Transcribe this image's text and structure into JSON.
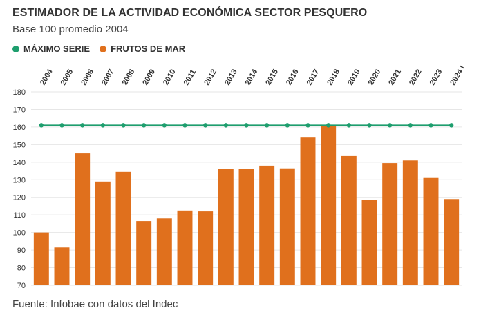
{
  "header": {
    "title": "ESTIMADOR DE LA ACTIVIDAD ECONÓMICA SECTOR PESQUERO",
    "subtitle": "Base 100 promedio 2004"
  },
  "legend": {
    "items": [
      {
        "label": "MÁXIMO SERIE",
        "color": "#1e9e6e"
      },
      {
        "label": "FRUTOS DE MAR",
        "color": "#e0701d"
      }
    ]
  },
  "footer": {
    "source": "Fuente: Infobae con datos del Indec"
  },
  "chart_data": {
    "type": "bar",
    "title": "ESTIMADOR DE LA ACTIVIDAD ECONÓMICA SECTOR PESQUERO",
    "subtitle": "Base 100 promedio 2004",
    "categories": [
      "2004",
      "2005",
      "2006",
      "2007",
      "2008",
      "2009",
      "2010",
      "2011",
      "2012",
      "2013",
      "2014",
      "2015",
      "2016",
      "2017",
      "2018",
      "2019",
      "2020",
      "2021",
      "2022",
      "2023",
      "2024 I"
    ],
    "series": [
      {
        "name": "FRUTOS DE MAR",
        "type": "bar",
        "color": "#e0701d",
        "values": [
          100,
          91.5,
          145,
          129,
          134.5,
          106.5,
          108,
          112.5,
          112,
          136,
          136,
          138,
          136.5,
          154,
          161,
          143.5,
          118.5,
          139.5,
          141,
          131,
          119
        ]
      },
      {
        "name": "MÁXIMO SERIE",
        "type": "line",
        "color": "#1e9e6e",
        "values": [
          161,
          161,
          161,
          161,
          161,
          161,
          161,
          161,
          161,
          161,
          161,
          161,
          161,
          161,
          161,
          161,
          161,
          161,
          161,
          161,
          161
        ]
      }
    ],
    "ylim": [
      70,
      180
    ],
    "yticks": [
      70,
      80,
      90,
      100,
      110,
      120,
      130,
      140,
      150,
      160,
      170,
      180
    ],
    "xlabel": "",
    "ylabel": "",
    "grid": true,
    "legend_position": "top-left"
  }
}
